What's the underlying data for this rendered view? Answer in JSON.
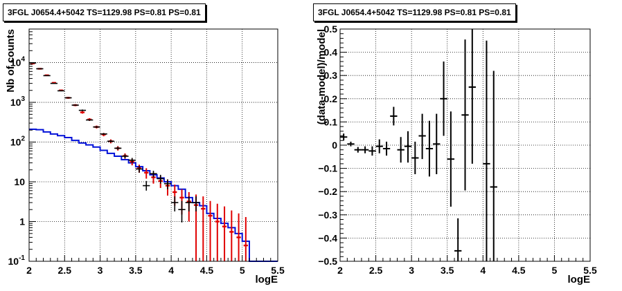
{
  "colors": {
    "black": "#000000",
    "red": "#e00000",
    "blue": "#0010d8",
    "grid": "#000000"
  },
  "chart_data": [
    {
      "type": "line",
      "title": "3FGL J0654.4+5042 TS=1129.98 PS=0.81 PS=0.81",
      "xlabel": "logE",
      "ylabel": "Nb of counts",
      "xlim": [
        2,
        5.5
      ],
      "ylim": [
        0.1,
        70000
      ],
      "yscale": "log",
      "grid": true,
      "xticks": [
        "2",
        "2.5",
        "3",
        "3.5",
        "4",
        "4.5",
        "5",
        "5.5"
      ],
      "yticks": [
        {
          "v": 0.1,
          "label": "10^-1"
        },
        {
          "v": 1,
          "label": "1"
        },
        {
          "v": 10,
          "label": "10"
        },
        {
          "v": 100,
          "label": "10^2"
        },
        {
          "v": 1000,
          "label": "10^3"
        },
        {
          "v": 10000,
          "label": "10^4"
        }
      ],
      "bin_edges": [
        2.0,
        2.1,
        2.2,
        2.3,
        2.4,
        2.5,
        2.6,
        2.7,
        2.8,
        2.9,
        3.0,
        3.1,
        3.2,
        3.3,
        3.4,
        3.5,
        3.6,
        3.7,
        3.8,
        3.9,
        4.0,
        4.1,
        4.2,
        4.3,
        4.4,
        4.5,
        4.6,
        4.7,
        4.8,
        4.9,
        5.0,
        5.1,
        5.2,
        5.3,
        5.4,
        5.5
      ],
      "series": [
        {
          "name": "",
          "style": "blue-histogram",
          "values": [
            210,
            205,
            180,
            160,
            145,
            130,
            110,
            95,
            85,
            75,
            62,
            52,
            44,
            36,
            30,
            24,
            19,
            15,
            12.5,
            10,
            8,
            6.5,
            4,
            3,
            2.5,
            1.6,
            1.2,
            0.9,
            0.7,
            0.5,
            0.32,
            0.1,
            0.1,
            0.1,
            0.1
          ]
        },
        {
          "name": "",
          "style": "red-histogram-errors",
          "values": [
            9500,
            7000,
            4800,
            3100,
            2000,
            1300,
            850,
            560,
            370,
            240,
            155,
            105,
            70,
            45,
            32,
            22,
            17,
            13,
            10.5,
            8,
            5.5,
            4,
            3.2,
            2.6,
            2.1,
            1.4,
            1.0,
            0.75,
            0.55,
            0.4,
            0.25
          ],
          "err_low": [
            9000,
            6700,
            4600,
            2950,
            1900,
            1230,
            800,
            520,
            340,
            220,
            140,
            93,
            61,
            38,
            26,
            17,
            12,
            9,
            7,
            4.5,
            2.5,
            1.5,
            1.0,
            0.1,
            0.1,
            0.1,
            0.1,
            0.1,
            0.1,
            0.1,
            0.1
          ],
          "err_high": [
            10000,
            7300,
            5000,
            3250,
            2100,
            1370,
            900,
            600,
            400,
            260,
            170,
            117,
            79,
            52,
            38,
            27,
            22,
            17,
            14,
            11.5,
            8.5,
            6.5,
            5.5,
            4.8,
            4.3,
            3.3,
            2.8,
            2.4,
            1.9,
            1.6,
            1.3
          ]
        },
        {
          "name": "",
          "style": "black-data",
          "x": [
            2.05,
            2.15,
            2.25,
            2.35,
            2.45,
            2.55,
            2.65,
            2.75,
            2.85,
            2.95,
            3.05,
            3.15,
            3.25,
            3.35,
            3.45,
            3.55,
            3.65,
            3.75,
            3.85,
            3.95,
            4.05,
            4.15,
            4.25,
            4.35
          ],
          "y": [
            9800,
            7000,
            4700,
            3000,
            1950,
            1300,
            850,
            630,
            360,
            240,
            160,
            105,
            70,
            44,
            35,
            21,
            8,
            16,
            12,
            9,
            3,
            2,
            3,
            3
          ],
          "y_low": [
            9600,
            6850,
            4600,
            2940,
            1900,
            1260,
            820,
            600,
            345,
            228,
            152,
            98,
            64,
            39,
            30,
            17,
            6,
            13,
            9,
            6.5,
            1.8,
            0.95,
            1.8,
            1.8
          ],
          "y_high": [
            10000,
            7150,
            4800,
            3060,
            2000,
            1340,
            880,
            660,
            375,
            252,
            168,
            112,
            76,
            49,
            40,
            25,
            10.5,
            19,
            15,
            11.5,
            4.3,
            3.3,
            4.3,
            4.3
          ]
        }
      ]
    },
    {
      "type": "scatter",
      "title": "3FGL J0654.4+5042 TS=1129.98 PS=0.81 PS=0.81",
      "xlabel": "logE",
      "ylabel": "(data-model)/model",
      "xlim": [
        2,
        5.5
      ],
      "ylim": [
        -0.5,
        0.5
      ],
      "grid": true,
      "xticks": [
        "2",
        "2.5",
        "3",
        "3.5",
        "4",
        "4.5",
        "5",
        "5.5"
      ],
      "yticks": [
        "−0.5",
        "−0.4",
        "−0.3",
        "−0.2",
        "−0.1",
        "0",
        "0.1",
        "0.2",
        "0.3",
        "0.4",
        "0.5"
      ],
      "points": [
        {
          "x": 2.05,
          "y": 0.035,
          "lo": 0.02,
          "hi": 0.05
        },
        {
          "x": 2.15,
          "y": 0.005,
          "lo": -0.005,
          "hi": 0.015
        },
        {
          "x": 2.25,
          "y": -0.02,
          "lo": -0.032,
          "hi": -0.008
        },
        {
          "x": 2.35,
          "y": -0.02,
          "lo": -0.035,
          "hi": -0.005
        },
        {
          "x": 2.45,
          "y": -0.025,
          "lo": -0.045,
          "hi": -0.005
        },
        {
          "x": 2.55,
          "y": -0.005,
          "lo": -0.035,
          "hi": 0.025
        },
        {
          "x": 2.65,
          "y": -0.015,
          "lo": -0.045,
          "hi": 0.015
        },
        {
          "x": 2.75,
          "y": 0.125,
          "lo": 0.085,
          "hi": 0.165
        },
        {
          "x": 2.85,
          "y": -0.02,
          "lo": -0.075,
          "hi": 0.035
        },
        {
          "x": 2.95,
          "y": -0.005,
          "lo": -0.075,
          "hi": 0.06
        },
        {
          "x": 3.05,
          "y": -0.055,
          "lo": -0.125,
          "hi": 0.015
        },
        {
          "x": 3.15,
          "y": 0.04,
          "lo": -0.06,
          "hi": 0.135
        },
        {
          "x": 3.25,
          "y": -0.015,
          "lo": -0.135,
          "hi": 0.105
        },
        {
          "x": 3.35,
          "y": 0.005,
          "lo": -0.125,
          "hi": 0.135
        },
        {
          "x": 3.45,
          "y": 0.2,
          "lo": 0.04,
          "hi": 0.36
        },
        {
          "x": 3.55,
          "y": -0.06,
          "lo": -0.265,
          "hi": 0.145
        },
        {
          "x": 3.65,
          "y": -0.455,
          "lo": -0.5,
          "hi": -0.315
        },
        {
          "x": 3.75,
          "y": 0.13,
          "lo": -0.195,
          "hi": 0.455
        },
        {
          "x": 3.85,
          "y": 0.25,
          "lo": -0.08,
          "hi": 0.5
        },
        {
          "x": 4.05,
          "y": -0.08,
          "lo": -0.5,
          "hi": 0.45
        },
        {
          "x": 4.15,
          "y": -0.18,
          "lo": -0.5,
          "hi": 0.32
        }
      ]
    }
  ]
}
